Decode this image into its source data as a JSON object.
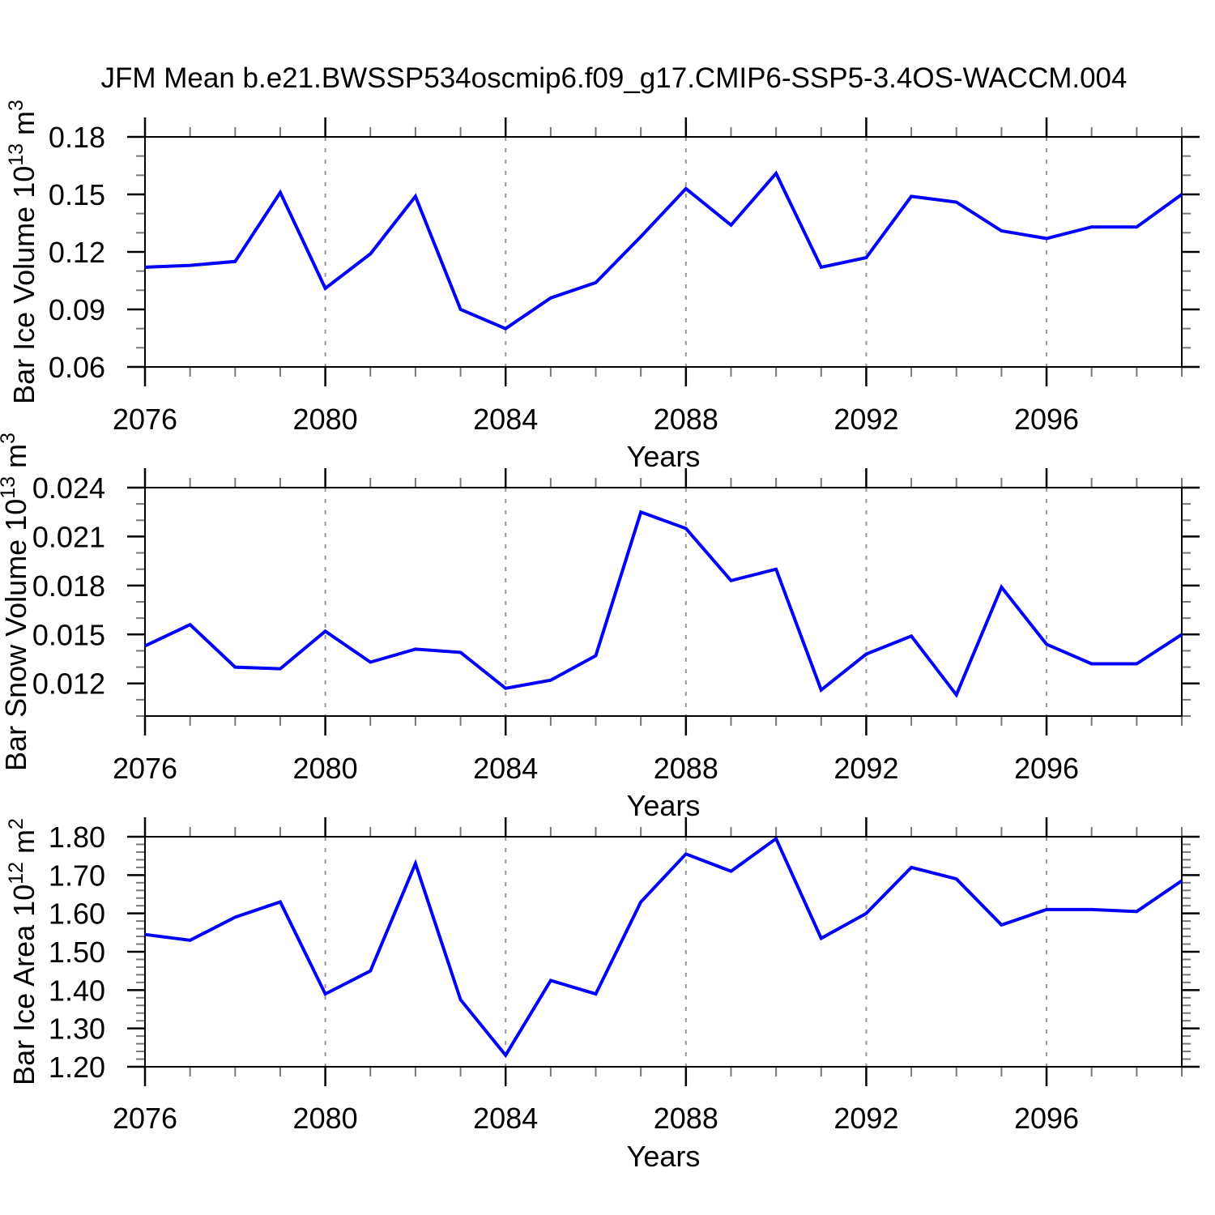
{
  "title": "JFM Mean b.e21.BWSSP534oscmip6.f09_g17.CMIP6-SSP5-3.4OS-WACCM.004",
  "colors": {
    "line": "#0000ff",
    "axis": "#000000",
    "major_tick": "#000000",
    "minor_tick": "#777777",
    "grid": "#999999",
    "background": "#ffffff",
    "text": "#000000"
  },
  "x_axis": {
    "label": "Years",
    "min": 2076,
    "max": 2099,
    "major_ticks": [
      2076,
      2080,
      2084,
      2088,
      2092,
      2096
    ],
    "minor_step": 1,
    "grid_years": [
      2080,
      2084,
      2088,
      2092,
      2096
    ],
    "years": [
      2076,
      2077,
      2078,
      2079,
      2080,
      2081,
      2082,
      2083,
      2084,
      2085,
      2086,
      2087,
      2088,
      2089,
      2090,
      2091,
      2092,
      2093,
      2094,
      2095,
      2096,
      2097,
      2098,
      2099
    ]
  },
  "chart_data": [
    {
      "type": "line",
      "panel": "ice-volume",
      "title": "",
      "ylabel": "Bar Ice Volume 10^13 m^3",
      "ylabel_segments": [
        {
          "text": "Bar Ice Volume 10",
          "sup": false
        },
        {
          "text": "13",
          "sup": true
        },
        {
          "text": " m",
          "sup": false
        },
        {
          "text": "3",
          "sup": true
        }
      ],
      "xlabel": "Years",
      "ylim": [
        0.06,
        0.18
      ],
      "ytick_values": [
        0.06,
        0.09,
        0.12,
        0.15,
        0.18
      ],
      "ytick_labels": [
        "0.06",
        "0.09",
        "0.12",
        "0.15",
        "0.18"
      ],
      "y_minor_step": 0.01,
      "grid": "vertical-dashed",
      "legend": "none",
      "values": [
        0.112,
        0.113,
        0.115,
        0.151,
        0.101,
        0.119,
        0.149,
        0.09,
        0.08,
        0.096,
        0.104,
        0.128,
        0.153,
        0.134,
        0.161,
        0.112,
        0.117,
        0.149,
        0.146,
        0.131,
        0.127,
        0.133,
        0.133,
        0.15
      ]
    },
    {
      "type": "line",
      "panel": "snow-volume",
      "title": "",
      "ylabel": "Bar Snow Volume 10^13 m^3",
      "ylabel_segments": [
        {
          "text": "Bar Snow Volume 10",
          "sup": false
        },
        {
          "text": "13",
          "sup": true
        },
        {
          "text": " m",
          "sup": false
        },
        {
          "text": "3",
          "sup": true
        }
      ],
      "xlabel": "Years",
      "ylim": [
        0.01,
        0.024
      ],
      "ytick_values": [
        0.012,
        0.015,
        0.018,
        0.021,
        0.024
      ],
      "ytick_labels": [
        "0.012",
        "0.015",
        "0.018",
        "0.021",
        "0.024"
      ],
      "y_minor_step": 0.001,
      "grid": "vertical-dashed",
      "legend": "none",
      "values": [
        0.0143,
        0.0156,
        0.013,
        0.0129,
        0.0152,
        0.0133,
        0.0141,
        0.0139,
        0.0117,
        0.0122,
        0.0137,
        0.0225,
        0.0215,
        0.0183,
        0.019,
        0.0116,
        0.0138,
        0.0149,
        0.0113,
        0.0179,
        0.0144,
        0.0132,
        0.0132,
        0.015
      ]
    },
    {
      "type": "line",
      "panel": "ice-area",
      "title": "",
      "ylabel": "Bar Ice Area 10^12 m^2",
      "ylabel_segments": [
        {
          "text": "Bar Ice Area 10",
          "sup": false
        },
        {
          "text": "12",
          "sup": true
        },
        {
          "text": " m",
          "sup": false
        },
        {
          "text": "2",
          "sup": true
        }
      ],
      "xlabel": "Years",
      "ylim": [
        1.2,
        1.8
      ],
      "ytick_values": [
        1.2,
        1.3,
        1.4,
        1.5,
        1.6,
        1.7,
        1.8
      ],
      "ytick_labels": [
        "1.20",
        "1.30",
        "1.40",
        "1.50",
        "1.60",
        "1.70",
        "1.80"
      ],
      "y_minor_step": 0.02,
      "grid": "vertical-dashed",
      "legend": "none",
      "values": [
        1.545,
        1.53,
        1.59,
        1.63,
        1.39,
        1.45,
        1.73,
        1.375,
        1.23,
        1.425,
        1.39,
        1.63,
        1.755,
        1.71,
        1.795,
        1.535,
        1.6,
        1.72,
        1.69,
        1.57,
        1.61,
        1.61,
        1.605,
        1.685
      ]
    }
  ]
}
